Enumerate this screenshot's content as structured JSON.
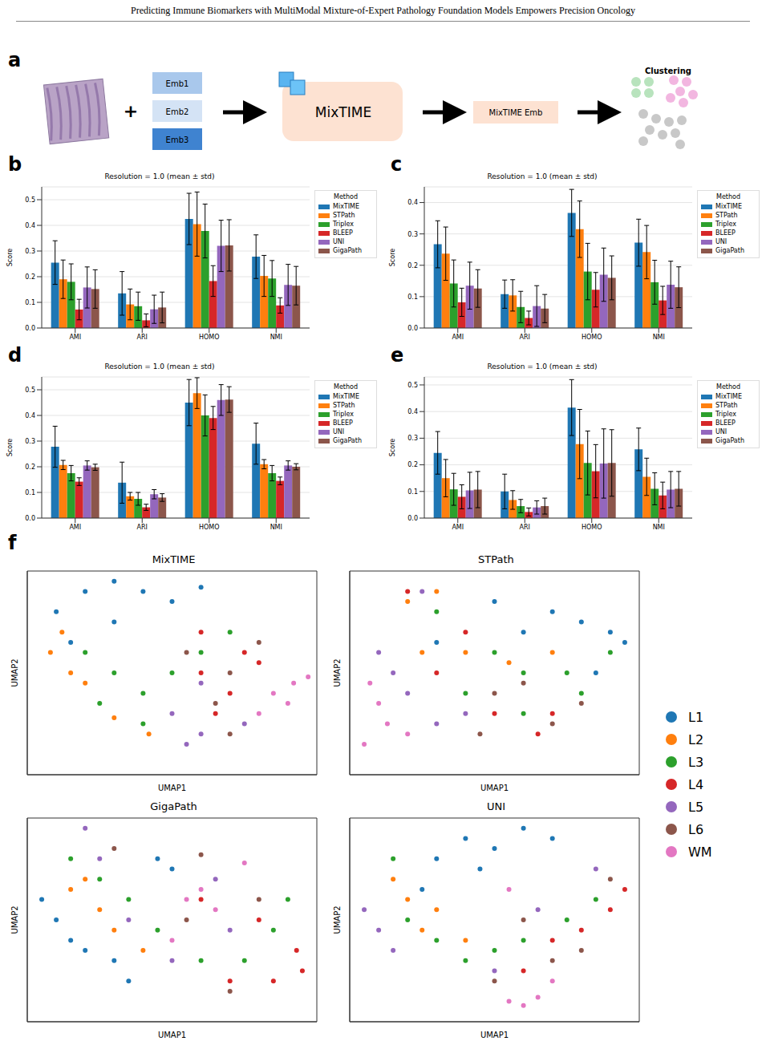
{
  "header": "Predicting Immune Biomarkers with MultiModal Mixture-of-Expert Pathology Foundation Models Empowers Precision Oncology",
  "panel_labels": [
    "a",
    "b",
    "c",
    "d",
    "e",
    "f"
  ],
  "diagram": {
    "plus": "+",
    "embeddings": [
      "Emb1",
      "Emb2",
      "Emb3"
    ],
    "model": "MixTIME",
    "output": "MixTIME Emb",
    "clustering": "Clustering"
  },
  "chart_data": [
    {
      "type": "bar",
      "title": "Resolution = 1.0 (mean ± std)",
      "y_label": "Score",
      "legend_title": "Method",
      "legend": "right",
      "grid": true,
      "categories": [
        "AMI",
        "ARI",
        "HOMO",
        "NMI"
      ],
      "ylim": [
        0,
        0.55
      ],
      "yticks": [
        {
          "value": 0,
          "label": "0.0"
        },
        0.1,
        0.2,
        0.3,
        0.4,
        0.5
      ],
      "series": [
        {
          "name": "MixTIME",
          "color": "#1f77b4",
          "values": [
            0.255,
            0.135,
            0.425,
            0.278
          ],
          "std": [
            0.085,
            0.085,
            0.1,
            0.085
          ]
        },
        {
          "name": "STPath",
          "color": "#ff7f0e",
          "values": [
            0.19,
            0.092,
            0.405,
            0.203
          ],
          "std": [
            0.075,
            0.06,
            0.125,
            0.08
          ]
        },
        {
          "name": "Triplex",
          "color": "#2ca02c",
          "values": [
            0.18,
            0.085,
            0.378,
            0.193
          ],
          "std": [
            0.07,
            0.055,
            0.105,
            0.07
          ]
        },
        {
          "name": "BLEEP",
          "color": "#d62728",
          "values": [
            0.072,
            0.03,
            0.183,
            0.088
          ],
          "std": [
            0.04,
            0.025,
            0.06,
            0.03
          ]
        },
        {
          "name": "UNI",
          "color": "#9467bd",
          "values": [
            0.158,
            0.073,
            0.32,
            0.168
          ],
          "std": [
            0.08,
            0.055,
            0.1,
            0.08
          ]
        },
        {
          "name": "GigaPath",
          "color": "#8c564b",
          "values": [
            0.152,
            0.08,
            0.322,
            0.165
          ],
          "std": [
            0.075,
            0.06,
            0.1,
            0.075
          ]
        }
      ]
    },
    {
      "type": "bar",
      "title": "Resolution = 1.0 (mean ± std)",
      "y_label": "Score",
      "legend_title": "Method",
      "legend": "right",
      "grid": true,
      "categories": [
        "AMI",
        "ARI",
        "HOMO",
        "NMI"
      ],
      "ylim": [
        0,
        0.45
      ],
      "yticks": [
        {
          "value": 0,
          "label": "0.0"
        },
        0.1,
        0.2,
        0.3,
        0.4
      ],
      "series": [
        {
          "name": "MixTIME",
          "color": "#1f77b4",
          "values": [
            0.267,
            0.108,
            0.367,
            0.272
          ],
          "std": [
            0.075,
            0.045,
            0.075,
            0.075
          ]
        },
        {
          "name": "STPath",
          "color": "#ff7f0e",
          "values": [
            0.237,
            0.104,
            0.315,
            0.242
          ],
          "std": [
            0.085,
            0.05,
            0.09,
            0.085
          ]
        },
        {
          "name": "Triplex",
          "color": "#2ca02c",
          "values": [
            0.142,
            0.067,
            0.18,
            0.146
          ],
          "std": [
            0.075,
            0.05,
            0.09,
            0.07
          ]
        },
        {
          "name": "BLEEP",
          "color": "#d62728",
          "values": [
            0.082,
            0.032,
            0.122,
            0.088
          ],
          "std": [
            0.045,
            0.022,
            0.055,
            0.045
          ]
        },
        {
          "name": "UNI",
          "color": "#9467bd",
          "values": [
            0.135,
            0.07,
            0.17,
            0.138
          ],
          "std": [
            0.075,
            0.065,
            0.085,
            0.075
          ]
        },
        {
          "name": "GigaPath",
          "color": "#8c564b",
          "values": [
            0.126,
            0.062,
            0.16,
            0.13
          ],
          "std": [
            0.06,
            0.045,
            0.07,
            0.065
          ]
        }
      ]
    },
    {
      "type": "bar",
      "title": "Resolution = 1.0 (mean ± std)",
      "y_label": "Score",
      "legend_title": "Method",
      "legend": "right",
      "grid": true,
      "categories": [
        "AMI",
        "ARI",
        "HOMO",
        "NMI"
      ],
      "ylim": [
        0,
        0.55
      ],
      "yticks": [
        {
          "value": 0,
          "label": "0.0"
        },
        0.1,
        0.2,
        0.3,
        0.4,
        0.5
      ],
      "series": [
        {
          "name": "MixTIME",
          "color": "#1f77b4",
          "values": [
            0.278,
            0.138,
            0.45,
            0.29
          ],
          "std": [
            0.08,
            0.08,
            0.09,
            0.08
          ]
        },
        {
          "name": "STPath",
          "color": "#ff7f0e",
          "values": [
            0.207,
            0.085,
            0.487,
            0.21
          ],
          "std": [
            0.018,
            0.015,
            0.06,
            0.018
          ]
        },
        {
          "name": "Triplex",
          "color": "#2ca02c",
          "values": [
            0.175,
            0.075,
            0.4,
            0.175
          ],
          "std": [
            0.03,
            0.025,
            0.08,
            0.03
          ]
        },
        {
          "name": "BLEEP",
          "color": "#d62728",
          "values": [
            0.142,
            0.042,
            0.39,
            0.145
          ],
          "std": [
            0.015,
            0.012,
            0.045,
            0.015
          ]
        },
        {
          "name": "UNI",
          "color": "#9467bd",
          "values": [
            0.205,
            0.093,
            0.46,
            0.205
          ],
          "std": [
            0.018,
            0.018,
            0.06,
            0.018
          ]
        },
        {
          "name": "GigaPath",
          "color": "#8c564b",
          "values": [
            0.198,
            0.08,
            0.462,
            0.2
          ],
          "std": [
            0.012,
            0.015,
            0.05,
            0.012
          ]
        }
      ]
    },
    {
      "type": "bar",
      "title": "Resolution = 1.0 (mean ± std)",
      "y_label": "Score",
      "legend_title": "Method",
      "legend": "right",
      "grid": true,
      "categories": [
        "AMI",
        "ARI",
        "HOMO",
        "NMI"
      ],
      "ylim": [
        0,
        0.53
      ],
      "yticks": [
        {
          "value": 0,
          "label": "0.0"
        },
        0.1,
        0.2,
        0.3,
        0.4,
        0.5
      ],
      "series": [
        {
          "name": "MixTIME",
          "color": "#1f77b4",
          "values": [
            0.245,
            0.1,
            0.415,
            0.258
          ],
          "std": [
            0.08,
            0.065,
            0.105,
            0.08
          ]
        },
        {
          "name": "STPath",
          "color": "#ff7f0e",
          "values": [
            0.15,
            0.068,
            0.278,
            0.155
          ],
          "std": [
            0.07,
            0.035,
            0.13,
            0.07
          ]
        },
        {
          "name": "Triplex",
          "color": "#2ca02c",
          "values": [
            0.108,
            0.045,
            0.207,
            0.11
          ],
          "std": [
            0.06,
            0.025,
            0.12,
            0.06
          ]
        },
        {
          "name": "BLEEP",
          "color": "#d62728",
          "values": [
            0.08,
            0.023,
            0.176,
            0.085
          ],
          "std": [
            0.045,
            0.015,
            0.1,
            0.05
          ]
        },
        {
          "name": "UNI",
          "color": "#9467bd",
          "values": [
            0.104,
            0.04,
            0.205,
            0.107
          ],
          "std": [
            0.068,
            0.025,
            0.13,
            0.068
          ]
        },
        {
          "name": "GigaPath",
          "color": "#8c564b",
          "values": [
            0.107,
            0.045,
            0.207,
            0.11
          ],
          "std": [
            0.068,
            0.03,
            0.125,
            0.065
          ]
        }
      ]
    },
    {
      "type": "scatter",
      "title": "MixTIME",
      "x_label": "UMAP1",
      "y_label": "UMAP2",
      "tick_labels": false,
      "legend": "right",
      "marker": "circle",
      "xlim": [
        0,
        10
      ],
      "ylim": [
        0,
        10
      ],
      "series": [
        {
          "name": "L1",
          "color": "#1f77b4",
          "x": [
            1,
            2,
            3,
            4,
            5,
            1.5,
            6,
            3
          ],
          "y": [
            8,
            9,
            9.5,
            9,
            8.5,
            6.5,
            9.2,
            7.5
          ]
        },
        {
          "name": "L2",
          "color": "#ff7f0e",
          "x": [
            0.8,
            1.5,
            2,
            3,
            4.2,
            1.2
          ],
          "y": [
            6,
            5,
            4.5,
            2.8,
            2,
            7
          ]
        },
        {
          "name": "L3",
          "color": "#2ca02c",
          "x": [
            2,
            3,
            2.5,
            4,
            5,
            6,
            7,
            4
          ],
          "y": [
            6,
            5,
            3.5,
            4,
            5,
            6,
            7,
            2.5
          ]
        },
        {
          "name": "L4",
          "color": "#d62728",
          "x": [
            6,
            7,
            7.5,
            6.5,
            8,
            6
          ],
          "y": [
            5,
            4,
            6,
            3,
            5.5,
            7
          ]
        },
        {
          "name": "L5",
          "color": "#9467bd",
          "x": [
            5,
            6,
            7.5,
            6,
            5.5
          ],
          "y": [
            3,
            2,
            2.5,
            4.5,
            1.5
          ]
        },
        {
          "name": "L6",
          "color": "#8c564b",
          "x": [
            7,
            5.5,
            8,
            6.5,
            7
          ],
          "y": [
            5,
            6,
            6.5,
            3.5,
            2
          ]
        },
        {
          "name": "WM",
          "color": "#e377c2",
          "x": [
            8.5,
            9.2,
            9.7,
            8,
            9
          ],
          "y": [
            4,
            4.5,
            4.8,
            3,
            3.5
          ]
        }
      ]
    },
    {
      "type": "scatter",
      "title": "STPath",
      "x_label": "UMAP1",
      "y_label": "UMAP2",
      "tick_labels": false,
      "marker": "circle",
      "xlim": [
        0,
        10
      ],
      "ylim": [
        0,
        10
      ],
      "series": [
        {
          "name": "L1",
          "color": "#1f77b4",
          "x": [
            7,
            8,
            9,
            9.5,
            6,
            5,
            3,
            8.5
          ],
          "y": [
            8,
            7.5,
            7,
            6.5,
            7,
            8.5,
            6.5,
            5
          ]
        },
        {
          "name": "L2",
          "color": "#ff7f0e",
          "x": [
            2,
            2.5,
            4,
            5.5,
            7,
            3
          ],
          "y": [
            8.5,
            6,
            6,
            5.5,
            6,
            9
          ]
        },
        {
          "name": "L3",
          "color": "#2ca02c",
          "x": [
            3,
            5,
            6,
            7.5,
            8,
            4,
            6,
            9
          ],
          "y": [
            8,
            6,
            5,
            5,
            4,
            4,
            3,
            6
          ]
        },
        {
          "name": "L4",
          "color": "#d62728",
          "x": [
            2,
            3,
            4,
            5,
            7,
            6.5
          ],
          "y": [
            9,
            5,
            7,
            3,
            3,
            2
          ]
        },
        {
          "name": "L5",
          "color": "#9467bd",
          "x": [
            1,
            1.5,
            2,
            3,
            4,
            2.5
          ],
          "y": [
            6,
            5,
            4,
            2.5,
            3,
            9
          ]
        },
        {
          "name": "L6",
          "color": "#8c564b",
          "x": [
            5,
            6,
            4.5,
            7,
            8
          ],
          "y": [
            4,
            4.5,
            2,
            2.5,
            3.5
          ]
        },
        {
          "name": "WM",
          "color": "#e377c2",
          "x": [
            0.7,
            1,
            1.3,
            0.5,
            2
          ],
          "y": [
            4.5,
            3.5,
            2.5,
            1.5,
            2
          ]
        }
      ]
    },
    {
      "type": "scatter",
      "title": "GigaPath",
      "x_label": "UMAP1",
      "y_label": "UMAP2",
      "tick_labels": false,
      "marker": "circle",
      "xlim": [
        0,
        10
      ],
      "ylim": [
        0,
        10
      ],
      "series": [
        {
          "name": "L1",
          "color": "#1f77b4",
          "x": [
            0.5,
            1,
            1.5,
            2,
            3,
            4.5,
            5,
            3.5
          ],
          "y": [
            6,
            5,
            4,
            3.5,
            3,
            8,
            7.5,
            2
          ]
        },
        {
          "name": "L2",
          "color": "#ff7f0e",
          "x": [
            1.5,
            2.5,
            3,
            2,
            4
          ],
          "y": [
            6.5,
            5.5,
            4.5,
            7,
            3.5
          ]
        },
        {
          "name": "L3",
          "color": "#2ca02c",
          "x": [
            1.5,
            2.5,
            3.5,
            4.5,
            6,
            7.5,
            8.5,
            9
          ],
          "y": [
            8,
            7,
            6,
            4.5,
            3,
            3,
            4.5,
            6
          ]
        },
        {
          "name": "L4",
          "color": "#d62728",
          "x": [
            8.5,
            9.3,
            7,
            6,
            8,
            9.5
          ],
          "y": [
            2,
            3.5,
            2,
            6,
            5,
            2.5
          ]
        },
        {
          "name": "L5",
          "color": "#9467bd",
          "x": [
            2,
            2.5,
            5,
            6.5,
            7,
            3.5
          ],
          "y": [
            9.5,
            8,
            3,
            7,
            4.5,
            5
          ]
        },
        {
          "name": "L6",
          "color": "#8c564b",
          "x": [
            3,
            5.5,
            6,
            8,
            7
          ],
          "y": [
            8.5,
            5,
            8.2,
            6,
            1.5
          ]
        },
        {
          "name": "WM",
          "color": "#e377c2",
          "x": [
            5.5,
            6,
            6.5,
            5,
            7.5
          ],
          "y": [
            6,
            6.5,
            5.5,
            4,
            7.8
          ]
        }
      ]
    },
    {
      "type": "scatter",
      "title": "UNI",
      "x_label": "UMAP1",
      "y_label": "UMAP2",
      "tick_labels": false,
      "marker": "circle",
      "xlim": [
        0,
        10
      ],
      "ylim": [
        0,
        10
      ],
      "series": [
        {
          "name": "L1",
          "color": "#1f77b4",
          "x": [
            3,
            4,
            5,
            6,
            4.5,
            2.5,
            7
          ],
          "y": [
            8,
            9,
            8.5,
            9.5,
            7.5,
            6.5,
            9
          ]
        },
        {
          "name": "L2",
          "color": "#ff7f0e",
          "x": [
            1.5,
            2,
            3,
            2.5,
            4
          ],
          "y": [
            7,
            6,
            5.5,
            4.5,
            4
          ]
        },
        {
          "name": "L3",
          "color": "#2ca02c",
          "x": [
            1.5,
            3,
            4,
            5,
            6,
            7.5,
            8.5,
            2
          ],
          "y": [
            8,
            4,
            3,
            3.5,
            4,
            5,
            6,
            5
          ]
        },
        {
          "name": "L4",
          "color": "#d62728",
          "x": [
            7,
            8,
            9,
            9.5,
            6
          ],
          "y": [
            4,
            4.5,
            5.5,
            6.5,
            2.5
          ]
        },
        {
          "name": "L5",
          "color": "#9467bd",
          "x": [
            0.5,
            1,
            1.5,
            5,
            6.5,
            8.5
          ],
          "y": [
            5.5,
            4.5,
            3.5,
            2.5,
            5.5,
            7.5
          ]
        },
        {
          "name": "L6",
          "color": "#8c564b",
          "x": [
            5,
            7,
            8,
            6,
            9
          ],
          "y": [
            2,
            3,
            3.5,
            5,
            7
          ]
        },
        {
          "name": "WM",
          "color": "#e377c2",
          "x": [
            5.5,
            6,
            6.5,
            7,
            5.5
          ],
          "y": [
            1,
            0.8,
            1.2,
            2,
            6.5
          ]
        }
      ]
    }
  ]
}
